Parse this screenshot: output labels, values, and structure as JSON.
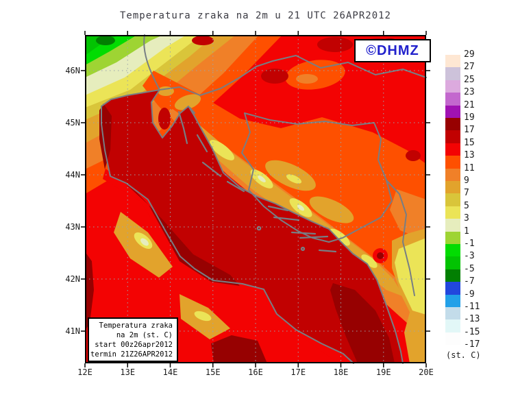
{
  "title": "Temperatura zraka na 2m u 21 UTC 26APR2012",
  "logo": {
    "text": "©DHMZ",
    "color": "#2121cc"
  },
  "info_box": {
    "lines": [
      "Temperatura zraka",
      "na 2m (st. C)",
      "start 00z26apr2012",
      "termin 21Z26APR2012"
    ]
  },
  "axes": {
    "lat_labels": [
      "46N",
      "45N",
      "44N",
      "43N",
      "42N",
      "41N"
    ],
    "lon_labels": [
      "12E",
      "13E",
      "14E",
      "15E",
      "16E",
      "17E",
      "18E",
      "19E",
      "20E"
    ]
  },
  "colorbar": {
    "unit_label": "(st. C)",
    "levels": [
      29,
      27,
      25,
      23,
      21,
      19,
      17,
      15,
      13,
      11,
      9,
      7,
      5,
      3,
      1,
      -1,
      -3,
      -5,
      -7,
      -9,
      -11,
      -13,
      -15,
      -17
    ],
    "colors": [
      "#fee7d3",
      "#cdc2da",
      "#dcaade",
      "#c368ce",
      "#a012b2",
      "#970101",
      "#c10101",
      "#f30303",
      "#fe5000",
      "#f08028",
      "#e2a32c",
      "#d9c53a",
      "#ebe457",
      "#e6edbd",
      "#9ed433",
      "#02dc02",
      "#02c302",
      "#027f02",
      "#2247dd",
      "#22a0e8",
      "#c3dcea",
      "#e2f7f7",
      "#fdfdfd"
    ]
  },
  "chart_data": {
    "type": "heatmap",
    "field": "Temperatura zraka na 2m",
    "valid_time": "21 UTC 26APR2012",
    "run_start": "00z26apr2012",
    "unit": "st. C",
    "lon_ticks": [
      "12E",
      "13E",
      "14E",
      "15E",
      "16E",
      "17E",
      "18E",
      "19E",
      "20E"
    ],
    "lat_ticks": [
      "46N",
      "45N",
      "44N",
      "43N",
      "42N",
      "41N"
    ],
    "legend_levels": [
      29,
      27,
      25,
      23,
      21,
      19,
      17,
      15,
      13,
      11,
      9,
      7,
      5,
      3,
      1,
      -1,
      -3,
      -5,
      -7,
      -9,
      -11,
      -13,
      -15,
      -17
    ],
    "legend_colors": [
      "#fee7d3",
      "#cdc2da",
      "#dcaade",
      "#c368ce",
      "#a012b2",
      "#970101",
      "#c10101",
      "#f30303",
      "#fe5000",
      "#f08028",
      "#e2a32c",
      "#d9c53a",
      "#ebe457",
      "#e6edbd",
      "#9ed433",
      "#02dc02",
      "#02c302",
      "#027f02",
      "#2247dd",
      "#22a0e8",
      "#c3dcea",
      "#e2f7f7",
      "#fdfdfd"
    ]
  }
}
